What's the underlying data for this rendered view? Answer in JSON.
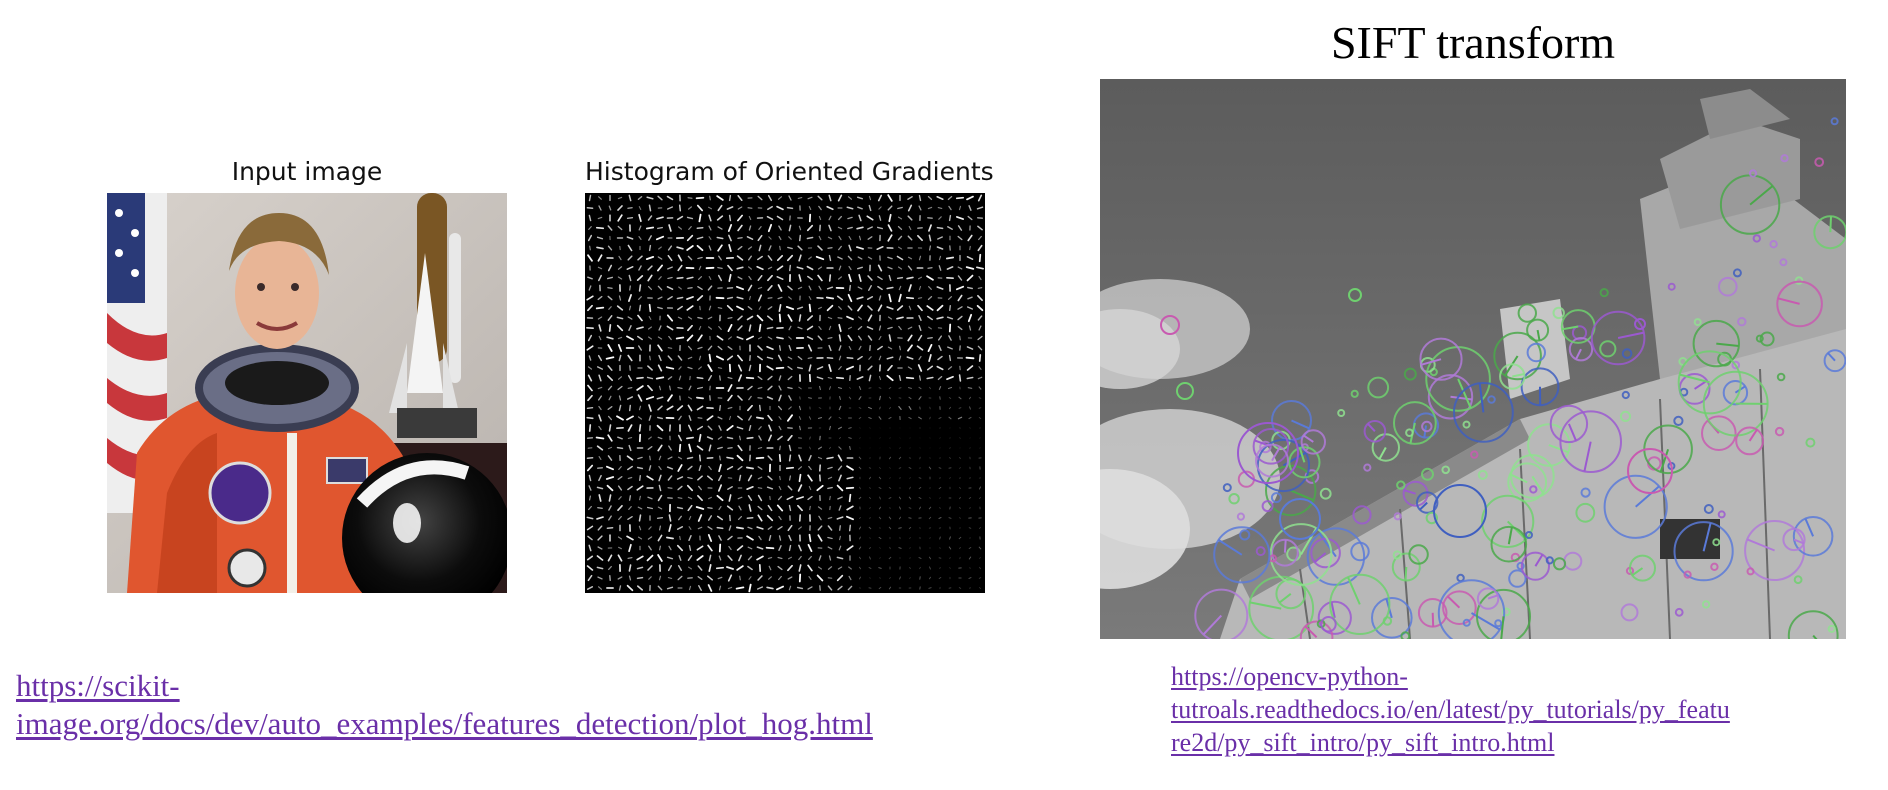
{
  "left_figure": {
    "input_caption": "Input image",
    "hog_caption": "Histogram of Oriented Gradients",
    "link_line1": "https://scikit-",
    "link_line2": "image.org/docs/dev/auto_examples/features_detection/plot_hog.html"
  },
  "right_figure": {
    "title": "SIFT transform",
    "link_line1": "https://opencv-python-",
    "link_line2": "tutroals.readthedocs.io/en/latest/py_tutorials/py_featu",
    "link_line3": "re2d/py_sift_intro/py_sift_intro.html"
  },
  "colors": {
    "link": "#6a2fa8",
    "suit": "#e0562f",
    "hog_background": "#000000",
    "sift_sky": "#6a6a6a"
  }
}
